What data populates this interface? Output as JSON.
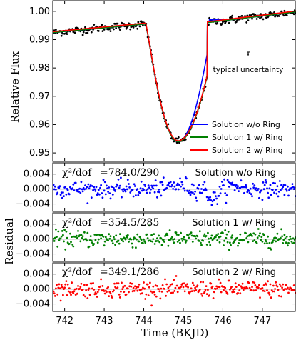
{
  "chart_data": [
    {
      "type": "line",
      "panel": "top",
      "ylabel": "Relative Flux",
      "xlim": [
        741.7,
        747.85
      ],
      "ylim": [
        0.947,
        1.004
      ],
      "yticks": [
        0.95,
        0.96,
        0.97,
        0.98,
        0.99,
        1.0
      ],
      "ytick_labels": [
        "0.95",
        "0.96",
        "0.97",
        "0.98",
        "0.99",
        "1.00"
      ],
      "annotation": "typical uncertainty",
      "typical_uncertainty": 0.0007,
      "legend_placement": "lower-right",
      "series": [
        {
          "name": "Solution w/o Ring",
          "color": "#0000ff"
        },
        {
          "name": "Solution 1 w/ Ring",
          "color": "#008000"
        },
        {
          "name": "Solution 2 w/ Ring",
          "color": "#ff0000"
        }
      ],
      "observations": {
        "name": "data",
        "color": "#000000"
      }
    },
    {
      "type": "scatter",
      "panel": "residual-1",
      "label_prefix": "χ²/dof",
      "chi_text": "=784.0/290",
      "title": "Solution w/o Ring",
      "color": "#0000ff",
      "ylim": [
        -0.006,
        0.007
      ],
      "yticks": [
        -0.004,
        0.0,
        0.004
      ],
      "ytick_labels": [
        "−0.004",
        "0.000",
        "0.004"
      ]
    },
    {
      "type": "scatter",
      "panel": "residual-2",
      "label_prefix": "χ²/dof",
      "chi_text": "=354.5/285",
      "title": "Solution 1 w/ Ring",
      "color": "#008000",
      "ylim": [
        -0.006,
        0.007
      ],
      "yticks": [
        -0.004,
        0.0,
        0.004
      ],
      "ytick_labels": [
        "−0.004",
        "0.000",
        "0.004"
      ]
    },
    {
      "type": "scatter",
      "panel": "residual-3",
      "label_prefix": "χ²/dof",
      "chi_text": "=349.1/286",
      "title": "Solution 2 w/ Ring",
      "color": "#ff0000",
      "ylim": [
        -0.006,
        0.007
      ],
      "yticks": [
        -0.004,
        0.0,
        0.004
      ],
      "ytick_labels": [
        "−0.004",
        "0.000",
        "0.004"
      ],
      "xticks": [
        742,
        743,
        744,
        745,
        746,
        747
      ],
      "xtick_labels": [
        "742",
        "743",
        "744",
        "745",
        "746",
        "747"
      ]
    }
  ],
  "shared_ylabel": "Residual",
  "xlabel": "Time (BKJD)"
}
